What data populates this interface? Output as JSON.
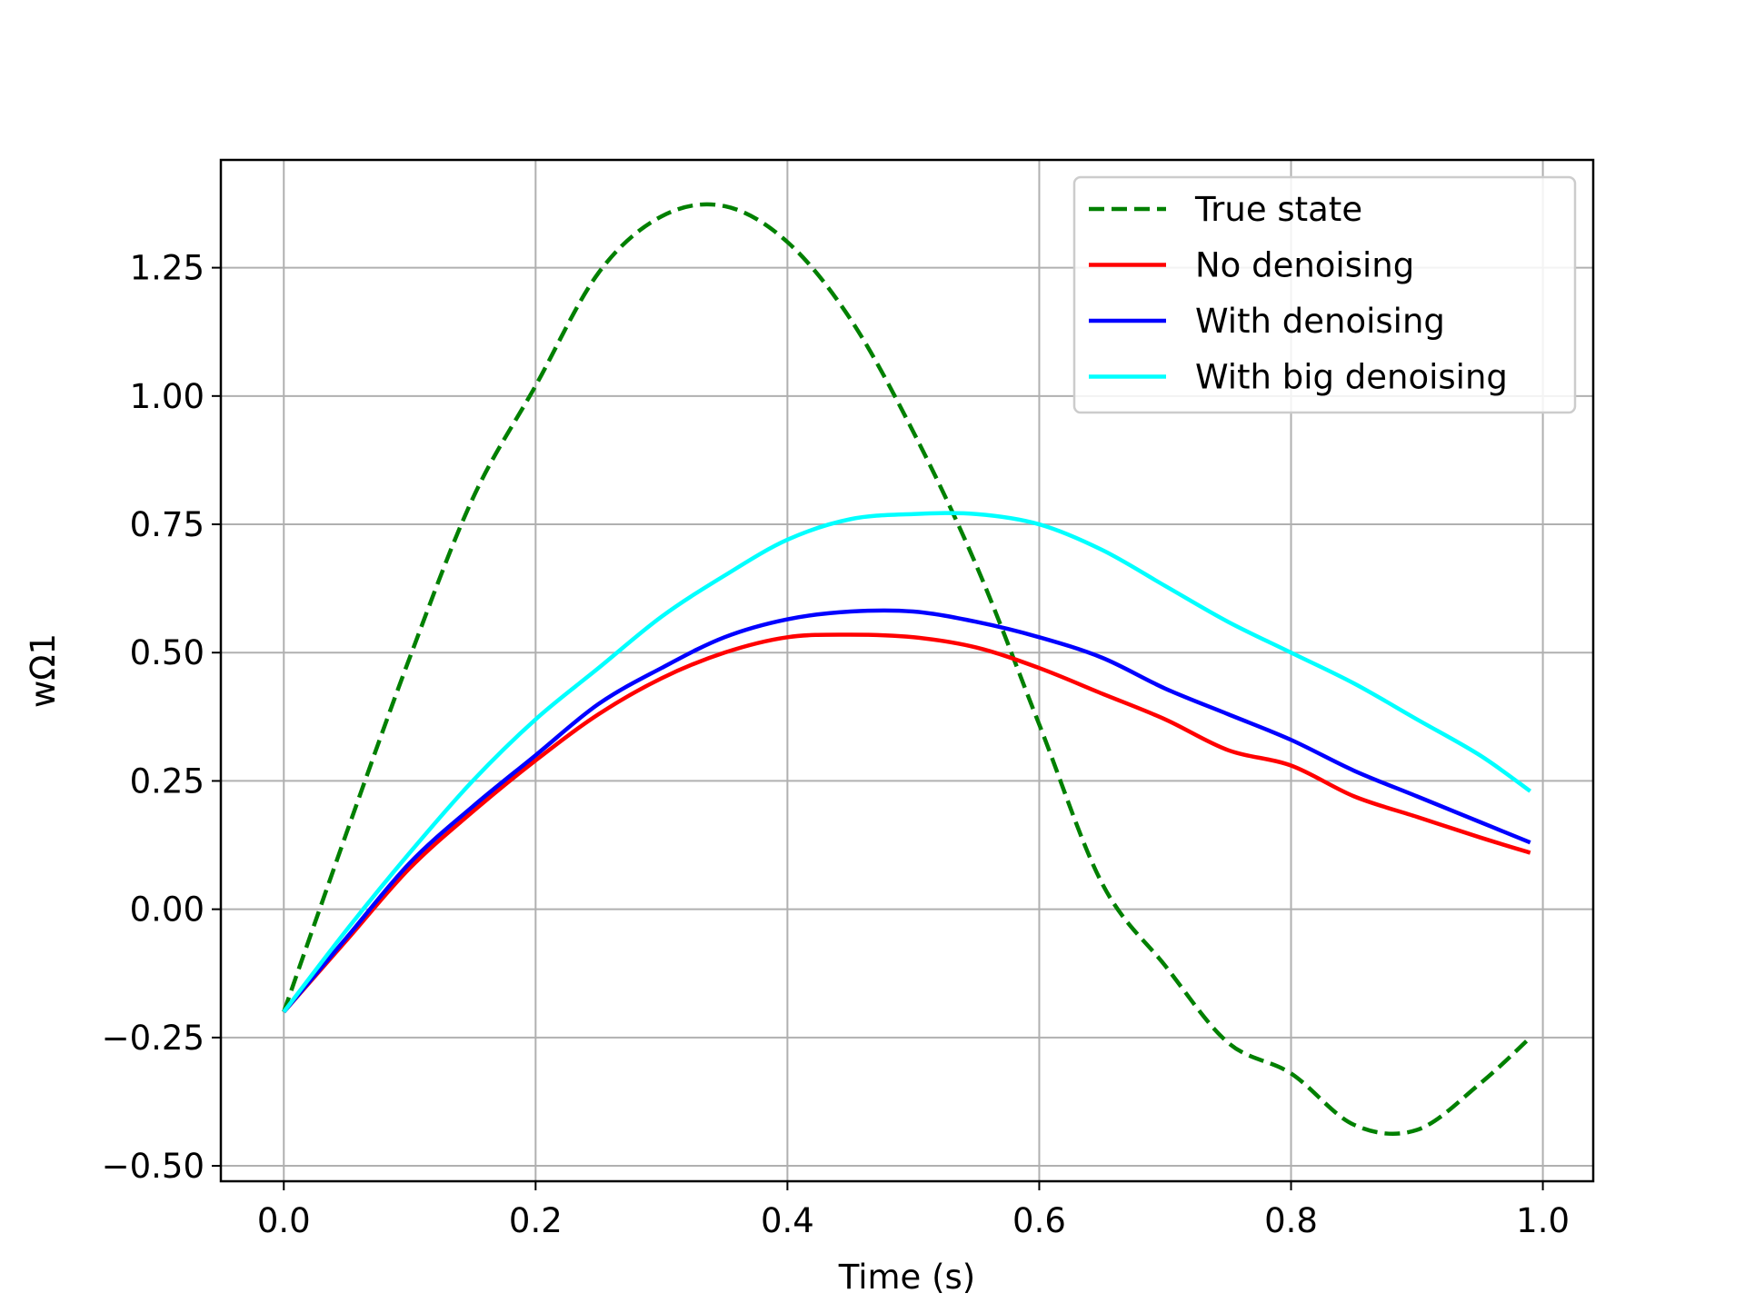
{
  "chart_data": {
    "type": "line",
    "title": "",
    "xlabel": "Time (s)",
    "ylabel": "wΩ1",
    "xlim": [
      -0.05,
      1.04
    ],
    "ylim": [
      -0.53,
      1.46
    ],
    "xticks": [
      0.0,
      0.2,
      0.4,
      0.6,
      0.8,
      1.0
    ],
    "xtick_labels": [
      "0.0",
      "0.2",
      "0.4",
      "0.6",
      "0.8",
      "1.0"
    ],
    "yticks": [
      -0.5,
      -0.25,
      0.0,
      0.25,
      0.5,
      0.75,
      1.0,
      1.25
    ],
    "ytick_labels": [
      "−0.50",
      "−0.25",
      "0.00",
      "0.25",
      "0.50",
      "0.75",
      "1.00",
      "1.25"
    ],
    "grid": true,
    "legend_position": "top-right",
    "x": [
      0.0,
      0.05,
      0.1,
      0.15,
      0.2,
      0.25,
      0.3,
      0.35,
      0.4,
      0.45,
      0.5,
      0.55,
      0.6,
      0.65,
      0.7,
      0.75,
      0.8,
      0.85,
      0.9,
      0.95,
      0.99
    ],
    "series": [
      {
        "name": "True state",
        "color": "#008000",
        "dashed": true,
        "values": [
          -0.2,
          0.15,
          0.49,
          0.8,
          1.02,
          1.24,
          1.35,
          1.37,
          1.3,
          1.15,
          0.93,
          0.67,
          0.36,
          0.05,
          -0.11,
          -0.26,
          -0.32,
          -0.42,
          -0.43,
          -0.34,
          -0.25
        ]
      },
      {
        "name": "No denoising",
        "color": "#ff0000",
        "dashed": false,
        "values": [
          -0.2,
          -0.06,
          0.08,
          0.19,
          0.29,
          0.38,
          0.45,
          0.5,
          0.53,
          0.535,
          0.53,
          0.51,
          0.47,
          0.42,
          0.37,
          0.31,
          0.28,
          0.22,
          0.18,
          0.14,
          0.11
        ]
      },
      {
        "name": "With denoising",
        "color": "#0000ff",
        "dashed": false,
        "values": [
          -0.2,
          -0.055,
          0.09,
          0.2,
          0.3,
          0.4,
          0.47,
          0.53,
          0.565,
          0.58,
          0.58,
          0.56,
          0.53,
          0.49,
          0.43,
          0.38,
          0.33,
          0.27,
          0.22,
          0.17,
          0.13
        ]
      },
      {
        "name": "With big denoising",
        "color": "#00ffff",
        "dashed": false,
        "values": [
          -0.2,
          -0.04,
          0.11,
          0.25,
          0.37,
          0.47,
          0.57,
          0.65,
          0.72,
          0.76,
          0.77,
          0.77,
          0.75,
          0.7,
          0.63,
          0.56,
          0.5,
          0.44,
          0.37,
          0.3,
          0.23
        ]
      }
    ]
  }
}
